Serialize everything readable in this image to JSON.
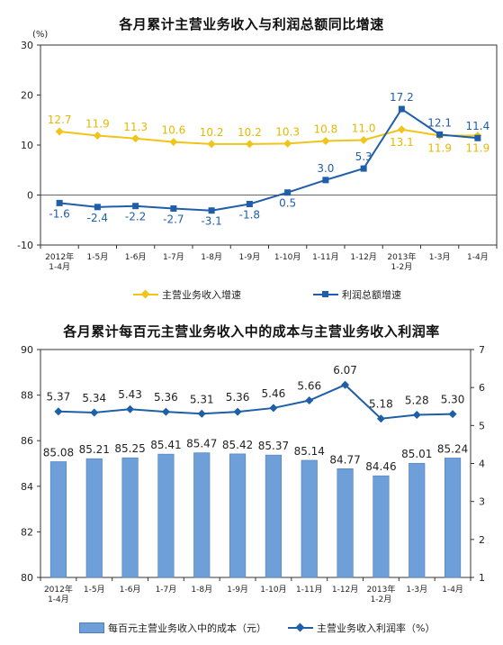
{
  "chart_data": [
    {
      "type": "line",
      "title": "各月累计主营业务收入与利润总额同比增速",
      "unit_label": "(%)",
      "categories": [
        "2012年\n1-4月",
        "1-5月",
        "1-6月",
        "1-7月",
        "1-8月",
        "1-9月",
        "1-10月",
        "1-11月",
        "1-12月",
        "2013年\n1-2月",
        "1-3月",
        "1-4月"
      ],
      "ylim": [
        -10,
        30
      ],
      "yticks": [
        -10,
        0,
        10,
        20,
        30
      ],
      "grid": false,
      "legend_position": "bottom",
      "series": [
        {
          "name": "主营业务收入增速",
          "values": [
            12.7,
            11.9,
            11.3,
            10.6,
            10.2,
            10.2,
            10.3,
            10.8,
            11.0,
            13.1,
            11.9,
            11.9
          ],
          "color": "#f0c419",
          "label_color": "#e6b800",
          "marker": "diamond"
        },
        {
          "name": "利润总额增速",
          "values": [
            -1.6,
            -2.4,
            -2.2,
            -2.7,
            -3.1,
            -1.8,
            0.5,
            3.0,
            5.3,
            17.2,
            12.1,
            11.4
          ],
          "color": "#1f5ea8",
          "label_color": "#1f5ea8",
          "marker": "square"
        }
      ]
    },
    {
      "type": "bar",
      "title": "各月累计每百元主营业务收入中的成本与主营业务收入利润率",
      "categories": [
        "2012年\n1-4月",
        "1-5月",
        "1-6月",
        "1-7月",
        "1-8月",
        "1-9月",
        "1-10月",
        "1-11月",
        "1-12月",
        "2013年\n1-2月",
        "1-3月",
        "1-4月"
      ],
      "ylim": [
        80,
        90
      ],
      "yticks": [
        80,
        82,
        84,
        86,
        88,
        90
      ],
      "y2lim": [
        1,
        7
      ],
      "y2ticks": [
        1,
        2,
        3,
        4,
        5,
        6,
        7
      ],
      "grid": false,
      "legend_position": "bottom",
      "series": [
        {
          "name": "每百元主营业务收入中的成本（元）",
          "axis": "left",
          "kind": "bar",
          "values": [
            85.08,
            85.21,
            85.25,
            85.41,
            85.47,
            85.42,
            85.37,
            85.14,
            84.77,
            84.46,
            85.01,
            85.24
          ],
          "labels": [
            "85.08",
            "85.21",
            "85.25",
            "85.41",
            "85.47",
            "85.42",
            "85.37",
            "85.14",
            "84.77",
            "84.46",
            "85.01",
            "85.24"
          ],
          "color": "#6e9fd8"
        },
        {
          "name": "主营业务收入利润率（%）",
          "axis": "right",
          "kind": "line",
          "values": [
            5.37,
            5.34,
            5.43,
            5.36,
            5.31,
            5.36,
            5.46,
            5.66,
            6.07,
            5.18,
            5.28,
            5.3
          ],
          "labels": [
            "5.37",
            "5.34",
            "5.43",
            "5.36",
            "5.31",
            "5.36",
            "5.46",
            "5.66",
            "6.07",
            "5.18",
            "5.28",
            "5.30"
          ],
          "color": "#1f5ea8",
          "marker": "diamond"
        }
      ]
    }
  ]
}
